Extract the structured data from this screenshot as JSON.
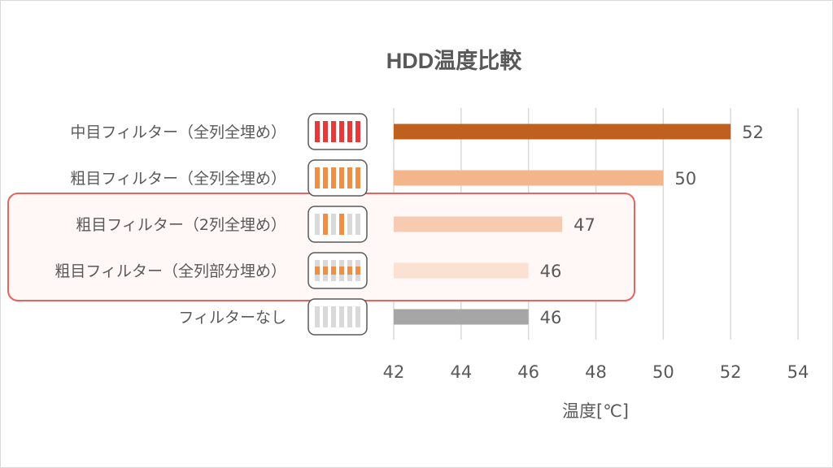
{
  "chart_data": {
    "type": "bar",
    "orientation": "horizontal",
    "title": "HDD温度比較",
    "xlabel": "温度[℃]",
    "ylabel": "",
    "xlim": [
      42,
      54
    ],
    "ticks": [
      "42",
      "44",
      "46",
      "48",
      "50",
      "52",
      "54"
    ],
    "grid": true,
    "categories": [
      "中目フィルター（全列全埋め）",
      "粗目フィルター（全列全埋め）",
      "粗目フィルター（2列全埋め）",
      "粗目フィルター（全列部分埋め）",
      "フィルターなし"
    ],
    "values": [
      52,
      50,
      47,
      46,
      46
    ],
    "value_labels": [
      "52",
      "50",
      "47",
      "46",
      "46"
    ],
    "bar_colors": [
      "#c0601f",
      "#f3b68a",
      "#f7cbb1",
      "#fbe1d2",
      "#a6a6a6"
    ],
    "thumbnail_styles": [
      "medium-full",
      "coarse-full",
      "coarse-2col",
      "coarse-partial",
      "none"
    ],
    "highlight": {
      "categories": [
        2,
        3
      ],
      "color": "#e8625f"
    }
  }
}
